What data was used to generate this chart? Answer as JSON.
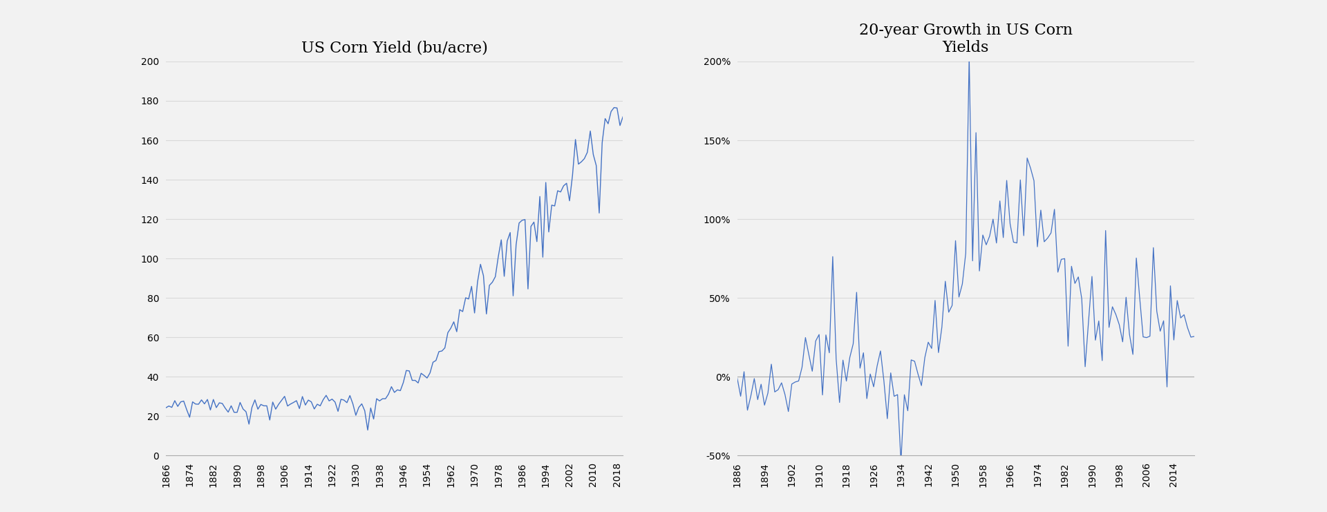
{
  "title1": "US Corn Yield (bu/acre)",
  "title2": "20-year Growth in US Corn\nYields",
  "line_color": "#4472C4",
  "bg_color": "#f2f2f2",
  "plot_bg": "#f2f2f2",
  "yield_data": {
    "1866": 24.3,
    "1867": 25.2,
    "1868": 24.5,
    "1869": 27.9,
    "1870": 25.0,
    "1871": 27.3,
    "1872": 27.7,
    "1873": 23.4,
    "1874": 19.5,
    "1875": 27.3,
    "1876": 26.2,
    "1877": 26.1,
    "1878": 28.3,
    "1879": 26.3,
    "1880": 28.5,
    "1881": 23.2,
    "1882": 28.5,
    "1883": 24.4,
    "1884": 26.8,
    "1885": 26.5,
    "1886": 24.1,
    "1887": 22.1,
    "1888": 25.3,
    "1889": 22.0,
    "1890": 22.0,
    "1891": 27.0,
    "1892": 23.7,
    "1893": 22.3,
    "1894": 16.0,
    "1895": 24.5,
    "1896": 28.3,
    "1897": 23.6,
    "1898": 26.0,
    "1899": 25.3,
    "1900": 25.3,
    "1901": 18.1,
    "1902": 27.2,
    "1903": 23.6,
    "1904": 26.1,
    "1905": 28.1,
    "1906": 30.1,
    "1907": 25.2,
    "1908": 26.2,
    "1909": 27.0,
    "1910": 27.9,
    "1911": 23.9,
    "1912": 30.0,
    "1913": 25.7,
    "1914": 28.2,
    "1915": 27.3,
    "1916": 23.7,
    "1917": 26.1,
    "1918": 25.3,
    "1919": 28.4,
    "1920": 30.6,
    "1921": 27.8,
    "1922": 28.7,
    "1923": 27.2,
    "1924": 22.5,
    "1925": 28.6,
    "1926": 28.2,
    "1927": 26.9,
    "1928": 30.5,
    "1929": 26.3,
    "1930": 20.5,
    "1931": 24.5,
    "1932": 26.3,
    "1933": 22.8,
    "1934": 13.0,
    "1935": 24.2,
    "1936": 18.6,
    "1937": 28.9,
    "1938": 27.8,
    "1939": 28.9,
    "1940": 28.9,
    "1941": 31.2,
    "1942": 35.0,
    "1943": 32.1,
    "1944": 33.4,
    "1945": 33.0,
    "1946": 37.1,
    "1947": 43.2,
    "1948": 43.0,
    "1949": 38.2,
    "1950": 38.2,
    "1951": 36.9,
    "1952": 41.8,
    "1953": 40.7,
    "1954": 39.4,
    "1955": 42.0,
    "1956": 47.4,
    "1957": 48.3,
    "1958": 52.8,
    "1959": 53.1,
    "1960": 54.7,
    "1961": 62.4,
    "1962": 64.7,
    "1963": 67.9,
    "1964": 62.9,
    "1965": 74.1,
    "1966": 73.1,
    "1967": 80.1,
    "1968": 79.5,
    "1969": 85.9,
    "1970": 72.4,
    "1971": 88.1,
    "1972": 97.1,
    "1973": 91.3,
    "1974": 71.9,
    "1975": 86.4,
    "1976": 88.0,
    "1977": 90.8,
    "1978": 101.0,
    "1979": 109.5,
    "1980": 91.0,
    "1981": 108.9,
    "1982": 113.2,
    "1983": 81.1,
    "1984": 107.0,
    "1985": 118.0,
    "1986": 119.4,
    "1987": 119.8,
    "1988": 84.6,
    "1989": 116.3,
    "1990": 118.5,
    "1991": 108.6,
    "1992": 131.5,
    "1993": 100.7,
    "1994": 138.6,
    "1995": 113.5,
    "1996": 127.1,
    "1997": 126.7,
    "1998": 134.4,
    "1999": 133.8,
    "2000": 136.9,
    "2001": 138.2,
    "2002": 129.3,
    "2003": 142.2,
    "2004": 160.4,
    "2005": 147.9,
    "2006": 149.1,
    "2007": 150.7,
    "2008": 153.9,
    "2009": 164.7,
    "2010": 152.8,
    "2011": 147.2,
    "2012": 123.1,
    "2013": 158.8,
    "2014": 171.0,
    "2015": 168.4,
    "2016": 174.6,
    "2017": 176.6,
    "2018": 176.4,
    "2019": 167.5,
    "2020": 172.0
  },
  "yticks1": [
    0,
    20,
    40,
    60,
    80,
    100,
    120,
    140,
    160,
    180,
    200
  ],
  "yticks2": [
    -0.5,
    0.0,
    0.5,
    1.0,
    1.5,
    2.0
  ],
  "ylim1": [
    0,
    200
  ],
  "ylim2": [
    -0.5,
    2.0
  ],
  "xtick_start1": 1866,
  "xtick_step1": 8,
  "xtick_start2": 1886,
  "xtick_step2": 8,
  "grid_color": "#d9d9d9",
  "spine_color": "#aaaaaa",
  "title_fontsize": 16,
  "tick_fontsize": 10
}
